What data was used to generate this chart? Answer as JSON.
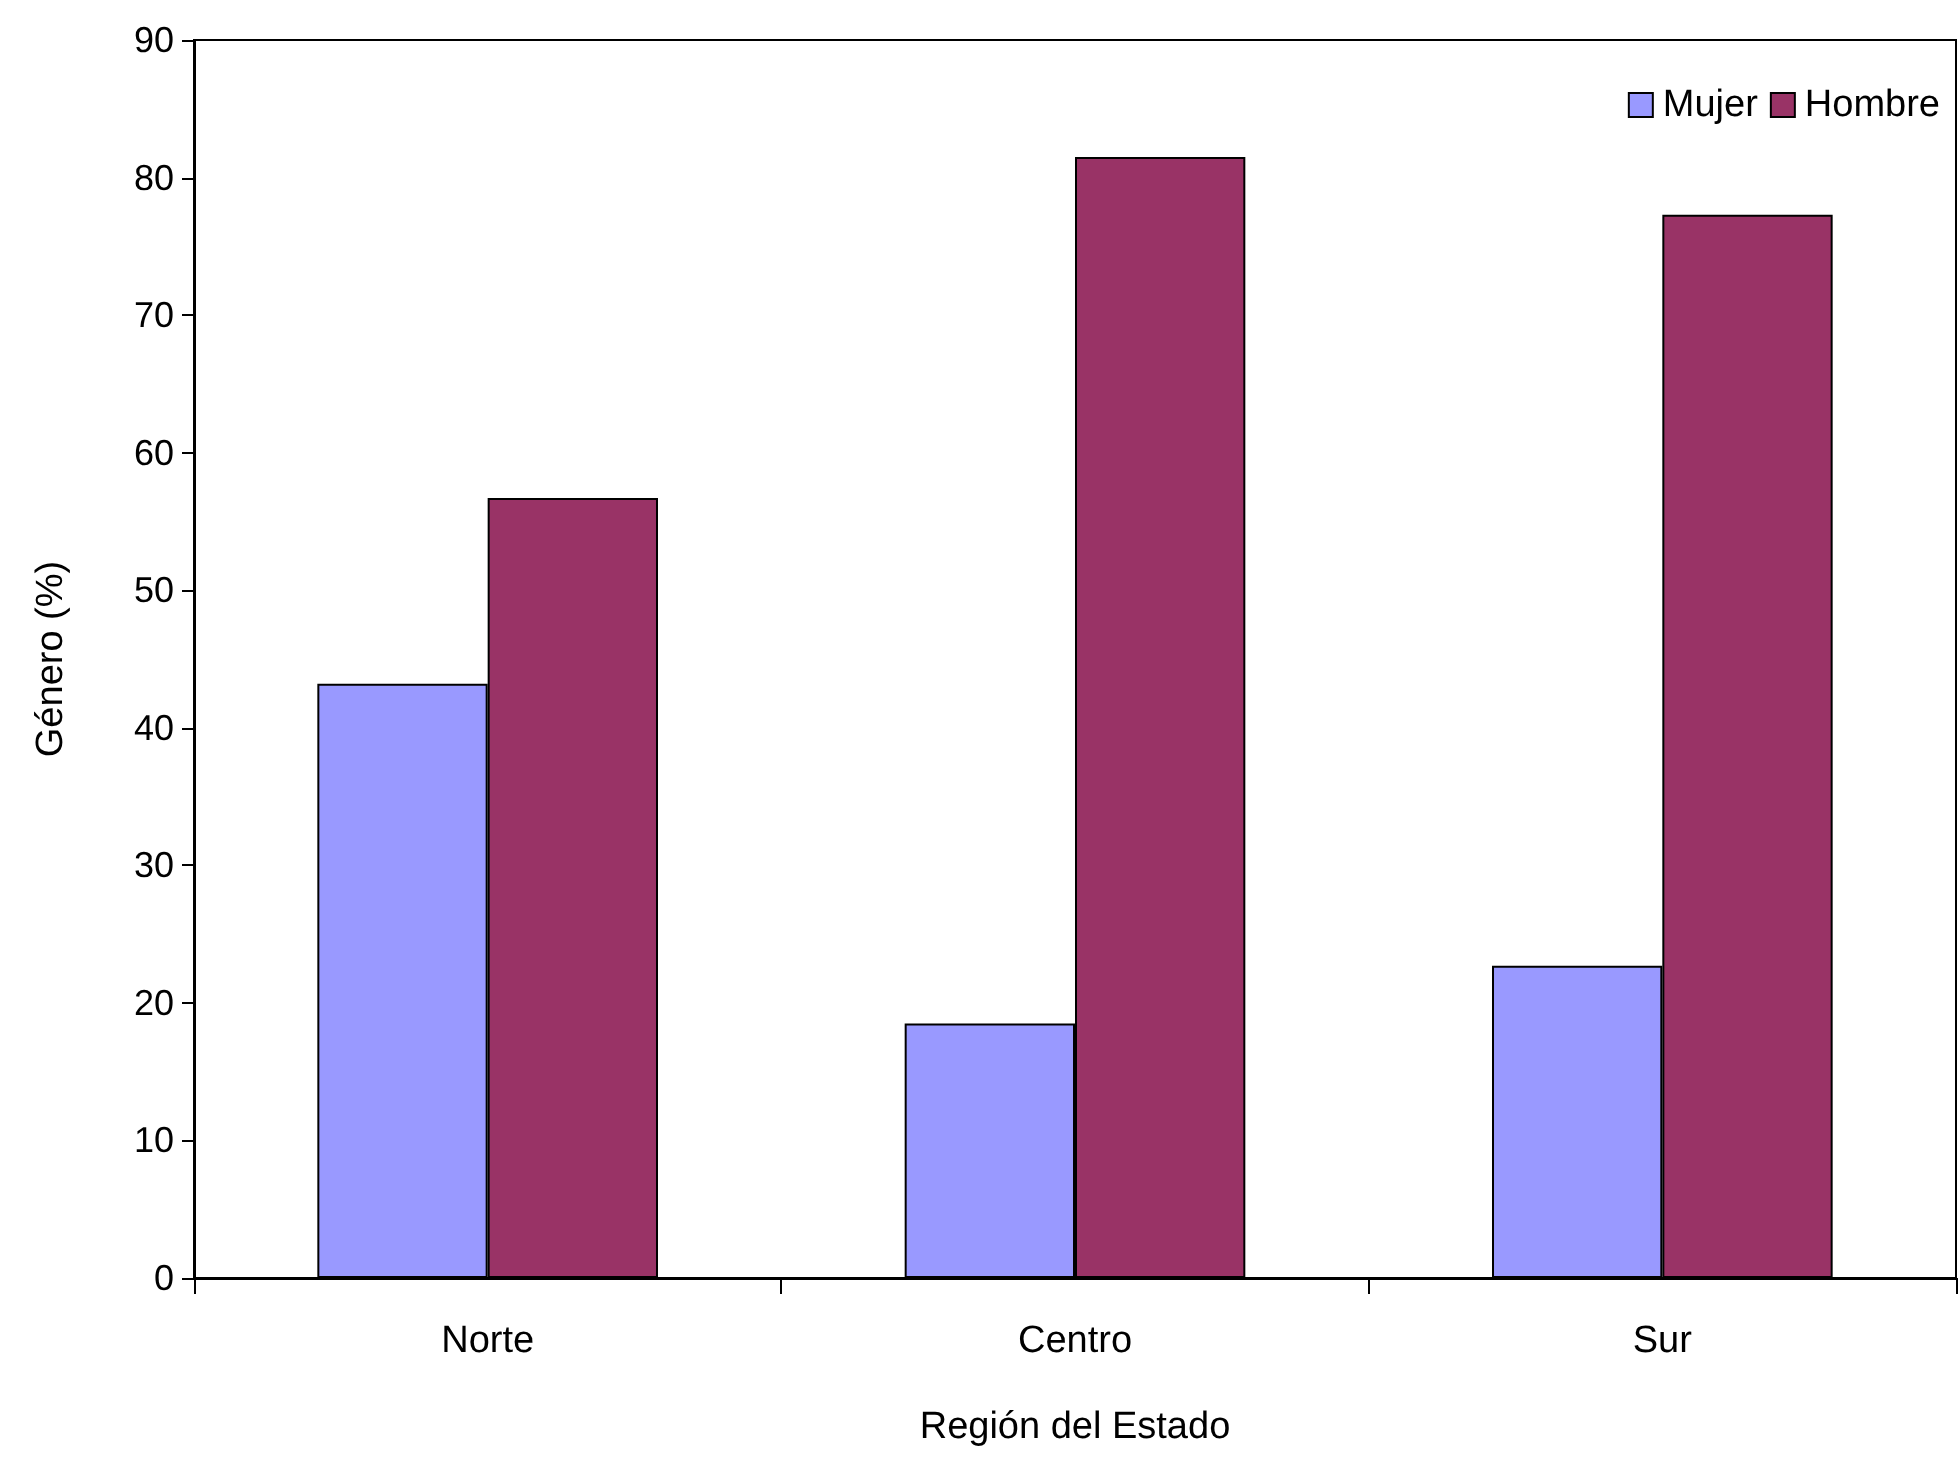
{
  "chart_data": {
    "type": "bar",
    "xlabel": "Región del Estado",
    "ylabel": "Género (%)",
    "categories": [
      "Norte",
      "Centro",
      "Sur"
    ],
    "series": [
      {
        "name": "Mujer",
        "color": "#9999ff",
        "values": [
          43.2,
          18.5,
          22.7
        ]
      },
      {
        "name": "Hombre",
        "color": "#993366",
        "values": [
          56.7,
          81.5,
          77.3
        ]
      }
    ],
    "ylim": [
      0,
      90
    ],
    "yticks": [
      0,
      10,
      20,
      30,
      40,
      50,
      60,
      70,
      80,
      90
    ],
    "grid": false,
    "legend": "top right"
  }
}
